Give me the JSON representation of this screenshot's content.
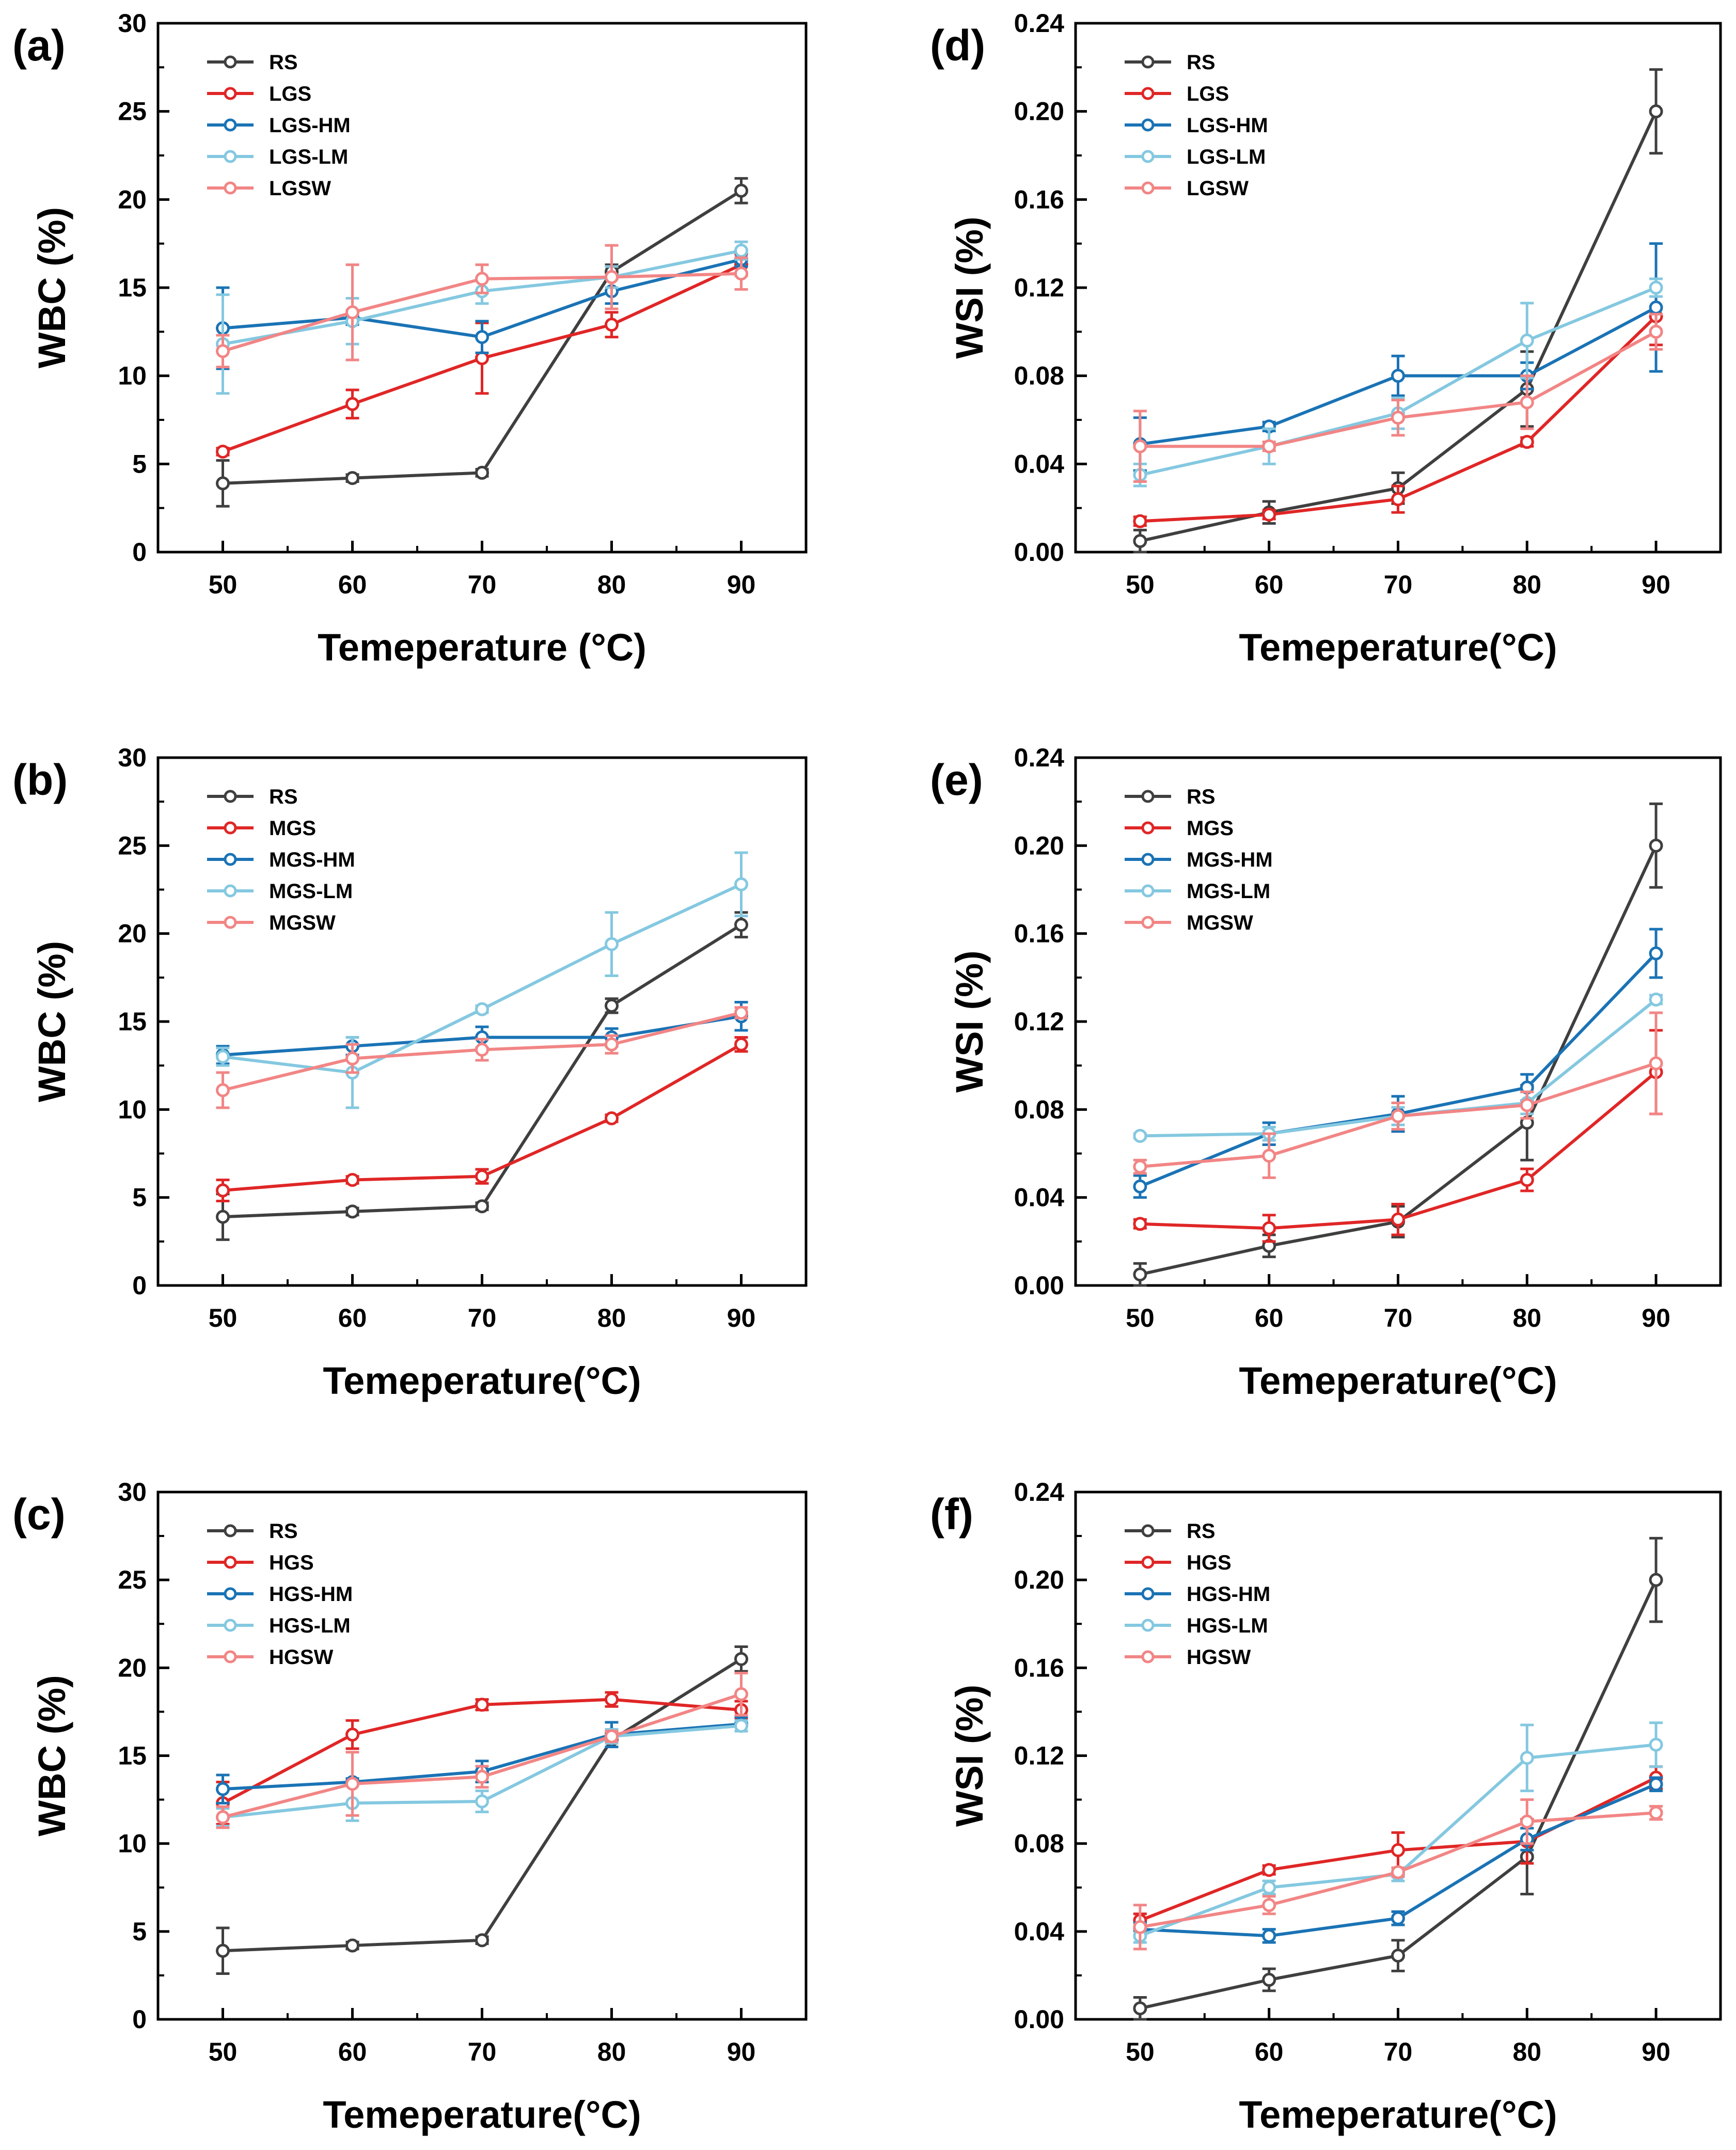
{
  "figure": {
    "temperature_unit": "°C"
  },
  "chart_data": [
    {
      "panel": "(a)",
      "type": "line",
      "xlabel": "Temeperature (°C)",
      "ylabel": "WBC (%)",
      "x": [
        50,
        60,
        70,
        80,
        90
      ],
      "xlim": [
        45,
        95
      ],
      "ylim": [
        0,
        30
      ],
      "x_ticks": [
        "50",
        "60",
        "70",
        "80",
        "90"
      ],
      "y_ticks": [
        "0",
        "5",
        "10",
        "15",
        "20",
        "25",
        "30"
      ],
      "legend_position": "top-left",
      "grid": false,
      "series": [
        {
          "name": "RS",
          "color": "#3f3f3f",
          "values": [
            3.9,
            4.2,
            4.5,
            15.9,
            20.5
          ],
          "errors": [
            1.3,
            0.2,
            0.2,
            0.4,
            0.7
          ]
        },
        {
          "name": "LGS",
          "color": "#e02626",
          "values": [
            5.7,
            8.4,
            11.0,
            12.9,
            16.3
          ],
          "errors": [
            0.2,
            0.8,
            2.0,
            0.7,
            0.6
          ]
        },
        {
          "name": "LGS-HM",
          "color": "#1a73b5",
          "values": [
            12.7,
            13.3,
            12.2,
            14.8,
            16.6
          ],
          "errors": [
            2.3,
            0.4,
            0.9,
            0.7,
            0.4
          ]
        },
        {
          "name": "LGS-LM",
          "color": "#84c8e0",
          "values": [
            11.8,
            13.1,
            14.8,
            15.6,
            17.1
          ],
          "errors": [
            2.8,
            1.3,
            0.7,
            0.6,
            0.5
          ]
        },
        {
          "name": "LGSW",
          "color": "#f28585",
          "values": [
            11.4,
            13.6,
            15.5,
            15.6,
            15.8
          ],
          "errors": [
            0.9,
            2.7,
            0.8,
            1.8,
            0.9
          ]
        }
      ]
    },
    {
      "panel": "(b)",
      "type": "line",
      "xlabel": "Temeperature(°C)",
      "ylabel": "WBC (%)",
      "x": [
        50,
        60,
        70,
        80,
        90
      ],
      "xlim": [
        45,
        95
      ],
      "ylim": [
        0,
        30
      ],
      "x_ticks": [
        "50",
        "60",
        "70",
        "80",
        "90"
      ],
      "y_ticks": [
        "0",
        "5",
        "10",
        "15",
        "20",
        "25",
        "30"
      ],
      "legend_position": "top-left",
      "grid": false,
      "series": [
        {
          "name": "RS",
          "color": "#3f3f3f",
          "values": [
            3.9,
            4.2,
            4.5,
            15.9,
            20.5
          ],
          "errors": [
            1.3,
            0.2,
            0.2,
            0.4,
            0.7
          ]
        },
        {
          "name": "MGS",
          "color": "#e02626",
          "values": [
            5.4,
            6.0,
            6.2,
            9.5,
            13.7
          ],
          "errors": [
            0.6,
            0.2,
            0.4,
            0.2,
            0.4
          ]
        },
        {
          "name": "MGS-HM",
          "color": "#1a73b5",
          "values": [
            13.1,
            13.6,
            14.1,
            14.1,
            15.3
          ],
          "errors": [
            0.5,
            0.5,
            0.6,
            0.5,
            0.8
          ]
        },
        {
          "name": "MGS-LM",
          "color": "#84c8e0",
          "values": [
            13.0,
            12.1,
            15.7,
            19.4,
            22.8
          ],
          "errors": [
            0.5,
            2.0,
            0.2,
            1.8,
            1.8
          ]
        },
        {
          "name": "MGSW",
          "color": "#f28585",
          "values": [
            11.1,
            12.9,
            13.4,
            13.7,
            15.5
          ],
          "errors": [
            1.0,
            0.8,
            0.6,
            0.5,
            0.3
          ]
        }
      ]
    },
    {
      "panel": "(c)",
      "type": "line",
      "xlabel": "Temeperature(°C)",
      "ylabel": "WBC (%)",
      "x": [
        50,
        60,
        70,
        80,
        90
      ],
      "xlim": [
        45,
        95
      ],
      "ylim": [
        0,
        30
      ],
      "x_ticks": [
        "50",
        "60",
        "70",
        "80",
        "90"
      ],
      "y_ticks": [
        "0",
        "5",
        "10",
        "15",
        "20",
        "25",
        "30"
      ],
      "legend_position": "top-left",
      "grid": false,
      "series": [
        {
          "name": "RS",
          "color": "#3f3f3f",
          "values": [
            3.9,
            4.2,
            4.5,
            15.9,
            20.5
          ],
          "errors": [
            1.3,
            0.2,
            0.2,
            0.4,
            0.7
          ]
        },
        {
          "name": "HGS",
          "color": "#e02626",
          "values": [
            12.3,
            16.2,
            17.9,
            18.2,
            17.6
          ],
          "errors": [
            1.2,
            0.8,
            0.3,
            0.4,
            0.5
          ]
        },
        {
          "name": "HGS-HM",
          "color": "#1a73b5",
          "values": [
            13.1,
            13.5,
            14.1,
            16.2,
            16.8
          ],
          "errors": [
            0.8,
            0.2,
            0.6,
            0.7,
            0.4
          ]
        },
        {
          "name": "HGS-LM",
          "color": "#84c8e0",
          "values": [
            11.5,
            12.3,
            12.4,
            16.1,
            16.7
          ],
          "errors": [
            0.5,
            1.0,
            0.6,
            0.4,
            0.3
          ]
        },
        {
          "name": "HGSW",
          "color": "#f28585",
          "values": [
            11.5,
            13.4,
            13.8,
            16.1,
            18.5
          ],
          "errors": [
            0.6,
            1.8,
            0.6,
            0.3,
            1.2
          ]
        }
      ]
    },
    {
      "panel": "(d)",
      "type": "line",
      "xlabel": "Temeperature(°C)",
      "ylabel": "WSI (%)",
      "x": [
        50,
        60,
        70,
        80,
        90
      ],
      "xlim": [
        45,
        95
      ],
      "ylim": [
        0,
        0.24
      ],
      "x_ticks": [
        "50",
        "60",
        "70",
        "80",
        "90"
      ],
      "y_ticks": [
        "0.00",
        "0.04",
        "0.08",
        "0.12",
        "0.16",
        "0.20",
        "0.24"
      ],
      "legend_position": "top-left",
      "grid": false,
      "series": [
        {
          "name": "RS",
          "color": "#3f3f3f",
          "values": [
            0.005,
            0.018,
            0.029,
            0.074,
            0.2
          ],
          "errors": [
            0.005,
            0.005,
            0.007,
            0.017,
            0.019
          ]
        },
        {
          "name": "LGS",
          "color": "#e02626",
          "values": [
            0.014,
            0.017,
            0.024,
            0.05,
            0.107
          ],
          "errors": [
            0.002,
            0.002,
            0.006,
            0.002,
            0.013
          ]
        },
        {
          "name": "LGS-HM",
          "color": "#1a73b5",
          "values": [
            0.049,
            0.057,
            0.08,
            0.08,
            0.111
          ],
          "errors": [
            0.012,
            0.002,
            0.009,
            0.006,
            0.029
          ]
        },
        {
          "name": "LGS-LM",
          "color": "#84c8e0",
          "values": [
            0.035,
            0.048,
            0.063,
            0.096,
            0.12
          ],
          "errors": [
            0.005,
            0.008,
            0.007,
            0.017,
            0.004
          ]
        },
        {
          "name": "LGSW",
          "color": "#f28585",
          "values": [
            0.048,
            0.048,
            0.061,
            0.068,
            0.1
          ],
          "errors": [
            0.016,
            0.002,
            0.008,
            0.012,
            0.008
          ]
        }
      ]
    },
    {
      "panel": "(e)",
      "type": "line",
      "xlabel": "Temeperature(°C)",
      "ylabel": "WSI (%)",
      "x": [
        50,
        60,
        70,
        80,
        90
      ],
      "xlim": [
        45,
        95
      ],
      "ylim": [
        0,
        0.24
      ],
      "x_ticks": [
        "50",
        "60",
        "70",
        "80",
        "90"
      ],
      "y_ticks": [
        "0.00",
        "0.04",
        "0.08",
        "0.12",
        "0.16",
        "0.20",
        "0.24"
      ],
      "legend_position": "top-left",
      "grid": false,
      "series": [
        {
          "name": "RS",
          "color": "#3f3f3f",
          "values": [
            0.005,
            0.018,
            0.029,
            0.074,
            0.2
          ],
          "errors": [
            0.005,
            0.005,
            0.007,
            0.017,
            0.019
          ]
        },
        {
          "name": "MGS",
          "color": "#e02626",
          "values": [
            0.028,
            0.026,
            0.03,
            0.048,
            0.097
          ],
          "errors": [
            0.002,
            0.006,
            0.007,
            0.005,
            0.019
          ]
        },
        {
          "name": "MGS-HM",
          "color": "#1a73b5",
          "values": [
            0.045,
            0.069,
            0.078,
            0.09,
            0.151
          ],
          "errors": [
            0.005,
            0.005,
            0.008,
            0.006,
            0.011
          ]
        },
        {
          "name": "MGS-LM",
          "color": "#84c8e0",
          "values": [
            0.068,
            0.069,
            0.077,
            0.083,
            0.13
          ],
          "errors": [
            0.001,
            0.003,
            0.004,
            0.005,
            0.002
          ]
        },
        {
          "name": "MGSW",
          "color": "#f28585",
          "values": [
            0.054,
            0.059,
            0.077,
            0.082,
            0.101
          ],
          "errors": [
            0.003,
            0.01,
            0.006,
            0.006,
            0.023
          ]
        }
      ]
    },
    {
      "panel": "(f)",
      "type": "line",
      "xlabel": "Temeperature(°C)",
      "ylabel": "WSI (%)",
      "x": [
        50,
        60,
        70,
        80,
        90
      ],
      "xlim": [
        45,
        95
      ],
      "ylim": [
        0,
        0.24
      ],
      "x_ticks": [
        "50",
        "60",
        "70",
        "80",
        "90"
      ],
      "y_ticks": [
        "0.00",
        "0.04",
        "0.08",
        "0.12",
        "0.16",
        "0.20",
        "0.24"
      ],
      "legend_position": "top-left",
      "grid": false,
      "series": [
        {
          "name": "RS",
          "color": "#3f3f3f",
          "values": [
            0.005,
            0.018,
            0.029,
            0.074,
            0.2
          ],
          "errors": [
            0.005,
            0.005,
            0.007,
            0.017,
            0.019
          ]
        },
        {
          "name": "HGS",
          "color": "#e02626",
          "values": [
            0.045,
            0.068,
            0.077,
            0.081,
            0.11
          ],
          "errors": [
            0.003,
            0.002,
            0.008,
            0.01,
            0.005
          ]
        },
        {
          "name": "HGS-HM",
          "color": "#1a73b5",
          "values": [
            0.041,
            0.038,
            0.046,
            0.082,
            0.107
          ],
          "errors": [
            0.003,
            0.003,
            0.003,
            0.005,
            0.003
          ]
        },
        {
          "name": "HGS-LM",
          "color": "#84c8e0",
          "values": [
            0.038,
            0.06,
            0.066,
            0.119,
            0.125
          ],
          "errors": [
            0.003,
            0.003,
            0.003,
            0.015,
            0.01
          ]
        },
        {
          "name": "HGSW",
          "color": "#f28585",
          "values": [
            0.042,
            0.052,
            0.067,
            0.09,
            0.094
          ],
          "errors": [
            0.01,
            0.004,
            0.002,
            0.01,
            0.003
          ]
        }
      ]
    }
  ]
}
